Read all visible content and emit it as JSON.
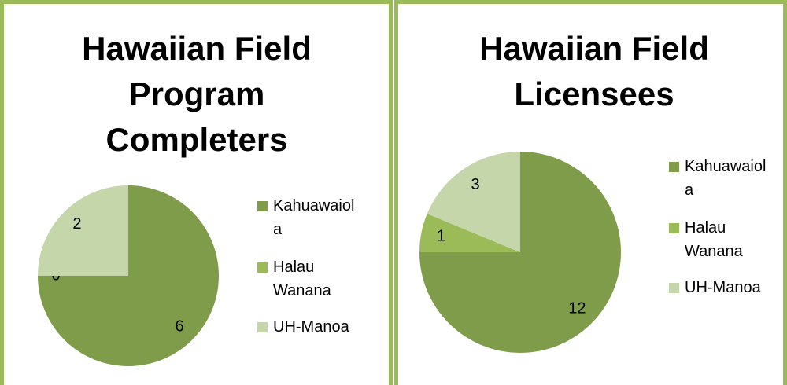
{
  "chart_data": [
    {
      "type": "pie",
      "title": "Hawaiian Field Program Completers",
      "categories": [
        "Kahuawaiola",
        "Halau Wanana",
        "UH-Manoa"
      ],
      "values": [
        6,
        0,
        2
      ],
      "colors": [
        "#7e9c4a",
        "#9bbb59",
        "#c6d6ab"
      ],
      "legend": "right"
    },
    {
      "type": "pie",
      "title": "Hawaiian Field Licensees",
      "categories": [
        "Kahuawaiola",
        "Halau Wanana",
        "UH-Manoa"
      ],
      "values": [
        12,
        1,
        3
      ],
      "colors": [
        "#7e9c4a",
        "#9bbb59",
        "#c6d6ab"
      ],
      "legend": "right"
    }
  ]
}
